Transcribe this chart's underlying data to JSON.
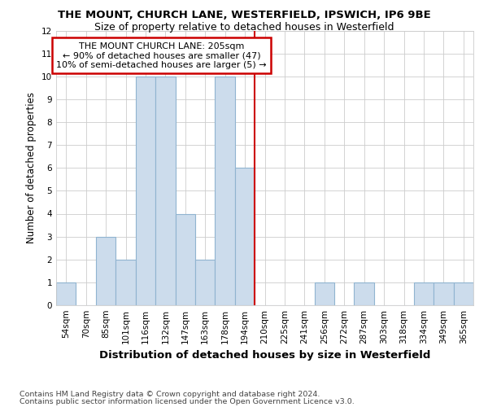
{
  "title": "THE MOUNT, CHURCH LANE, WESTERFIELD, IPSWICH, IP6 9BE",
  "subtitle": "Size of property relative to detached houses in Westerfield",
  "xlabel": "Distribution of detached houses by size in Westerfield",
  "ylabel": "Number of detached properties",
  "categories": [
    "54sqm",
    "70sqm",
    "85sqm",
    "101sqm",
    "116sqm",
    "132sqm",
    "147sqm",
    "163sqm",
    "178sqm",
    "194sqm",
    "210sqm",
    "225sqm",
    "241sqm",
    "256sqm",
    "272sqm",
    "287sqm",
    "303sqm",
    "318sqm",
    "334sqm",
    "349sqm",
    "365sqm"
  ],
  "values": [
    1,
    0,
    3,
    2,
    10,
    10,
    4,
    2,
    10,
    6,
    0,
    0,
    0,
    1,
    0,
    1,
    0,
    0,
    1,
    1,
    1
  ],
  "bar_color": "#ccdcec",
  "bar_edge_color": "#90b4d0",
  "annotation_line1": "THE MOUNT CHURCH LANE: 205sqm",
  "annotation_line2": "← 90% of detached houses are smaller (47)",
  "annotation_line3": "10% of semi-detached houses are larger (5) →",
  "annotation_box_color": "#ffffff",
  "annotation_box_edge": "#cc0000",
  "vline_color": "#cc0000",
  "vline_x_index": 9.5,
  "ylim": [
    0,
    12
  ],
  "yticks": [
    0,
    1,
    2,
    3,
    4,
    5,
    6,
    7,
    8,
    9,
    10,
    11,
    12
  ],
  "footer1": "Contains HM Land Registry data © Crown copyright and database right 2024.",
  "footer2": "Contains public sector information licensed under the Open Government Licence v3.0.",
  "bg_color": "#ffffff",
  "grid_color": "#cccccc",
  "title_fontsize": 9.5,
  "subtitle_fontsize": 9,
  "ylabel_fontsize": 8.5,
  "xlabel_fontsize": 9.5,
  "tick_fontsize": 7.5,
  "annotation_fontsize": 8,
  "footer_fontsize": 6.8
}
